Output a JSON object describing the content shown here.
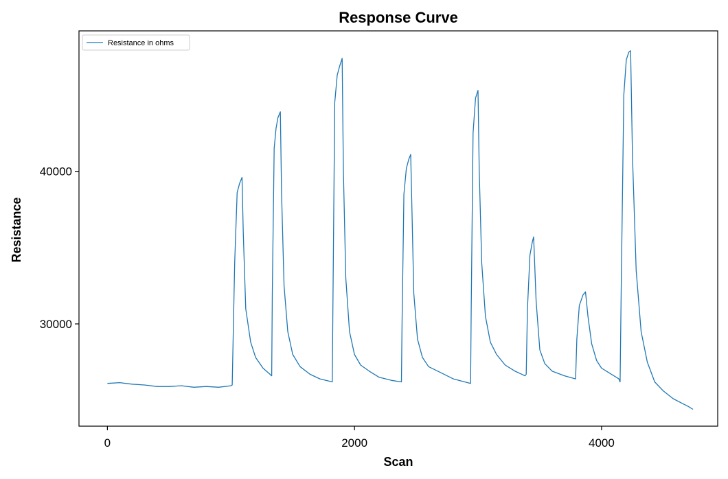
{
  "chart_data": {
    "type": "line",
    "title": "Response Curve",
    "xlabel": "Scan",
    "ylabel": "Resistance",
    "xlim": [
      -230,
      4940
    ],
    "ylim": [
      23300,
      49200
    ],
    "xticks": [
      0,
      2000,
      4000
    ],
    "yticks": [
      30000,
      40000
    ],
    "grid": false,
    "legend_position": "top-left",
    "series": [
      {
        "name": "Resistance in ohms",
        "color": "#1f77b4",
        "x": [
          0,
          100,
          200,
          300,
          400,
          500,
          600,
          700,
          800,
          900,
          1000,
          1010,
          1030,
          1050,
          1070,
          1090,
          1100,
          1120,
          1160,
          1200,
          1260,
          1330,
          1335,
          1350,
          1365,
          1380,
          1400,
          1410,
          1430,
          1460,
          1500,
          1560,
          1640,
          1720,
          1820,
          1825,
          1840,
          1860,
          1880,
          1900,
          1910,
          1930,
          1960,
          2000,
          2050,
          2120,
          2200,
          2300,
          2380,
          2385,
          2400,
          2420,
          2440,
          2455,
          2465,
          2480,
          2510,
          2550,
          2600,
          2700,
          2800,
          2940,
          2945,
          2960,
          2980,
          3000,
          3010,
          3030,
          3060,
          3100,
          3150,
          3220,
          3300,
          3380,
          3390,
          3400,
          3420,
          3440,
          3450,
          3470,
          3500,
          3540,
          3600,
          3700,
          3790,
          3800,
          3820,
          3850,
          3870,
          3890,
          3920,
          3960,
          4000,
          4060,
          4140,
          4150,
          4160,
          4180,
          4200,
          4220,
          4235,
          4250,
          4280,
          4320,
          4370,
          4430,
          4500,
          4580,
          4650,
          4700,
          4740
        ],
        "y": [
          26100,
          26150,
          26050,
          26000,
          25900,
          25900,
          25950,
          25850,
          25900,
          25850,
          25950,
          26000,
          34000,
          38600,
          39200,
          39600,
          36000,
          31000,
          28800,
          27800,
          27100,
          26600,
          32000,
          41500,
          42800,
          43500,
          43900,
          38500,
          32500,
          29500,
          28000,
          27200,
          26700,
          26400,
          26200,
          31000,
          44500,
          46300,
          46900,
          47400,
          40000,
          33000,
          29500,
          28000,
          27300,
          26900,
          26500,
          26300,
          26200,
          30000,
          38500,
          40200,
          40800,
          41100,
          37500,
          32000,
          29000,
          27800,
          27200,
          26800,
          26400,
          26100,
          31000,
          42500,
          44800,
          45300,
          40000,
          34000,
          30500,
          28800,
          28000,
          27300,
          26900,
          26600,
          26700,
          31000,
          34500,
          35400,
          35700,
          31500,
          28300,
          27400,
          26900,
          26600,
          26400,
          29000,
          31200,
          31900,
          32100,
          30500,
          28700,
          27600,
          27100,
          26800,
          26400,
          26200,
          33000,
          45000,
          47300,
          47800,
          47900,
          41000,
          33500,
          29500,
          27500,
          26200,
          25600,
          25100,
          24800,
          24600,
          24400
        ]
      }
    ]
  }
}
